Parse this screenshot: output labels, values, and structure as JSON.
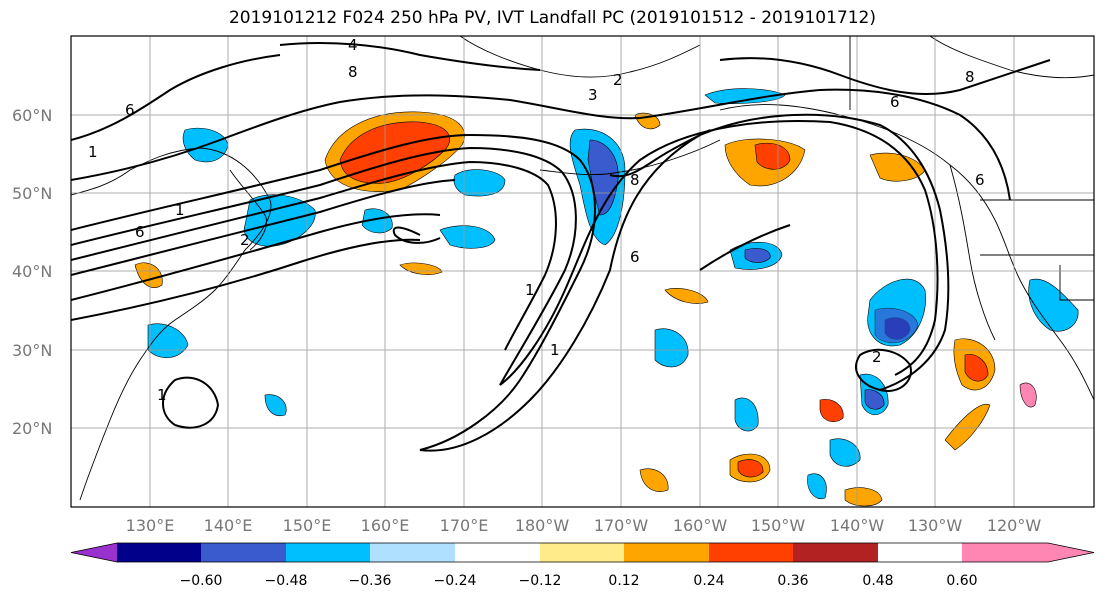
{
  "title": "2019101212 F024 250 hPa PV, IVT Landfall PC (2019101512 - 2019101712)",
  "map": {
    "lat_labels": [
      "60°N",
      "50°N",
      "40°N",
      "30°N",
      "20°N"
    ],
    "lon_labels": [
      "130°E",
      "140°E",
      "150°E",
      "160°E",
      "170°E",
      "180°W",
      "170°W",
      "160°W",
      "150°W",
      "140°W",
      "130°W",
      "120°W"
    ],
    "contour_labels": [
      "4",
      "8",
      "6",
      "1",
      "2",
      "3",
      "6",
      "1",
      "8",
      "6",
      "2",
      "1",
      "2",
      "1",
      "6",
      "8",
      "6",
      "1"
    ]
  },
  "colorbar": {
    "colors": [
      "#9932CC",
      "#00008B",
      "#3A5BCD",
      "#00BFFF",
      "#B0E0FF",
      "#FFFFFF",
      "#FFEB8A",
      "#FFA500",
      "#FF4000",
      "#B22222",
      "#FF85B3"
    ],
    "tick_labels": [
      "−0.60",
      "−0.48",
      "−0.36",
      "−0.24",
      "−0.12",
      "0.12",
      "0.24",
      "0.36",
      "0.48",
      "0.60"
    ]
  },
  "chart_data": {
    "type": "heatmap",
    "title": "2019101212 F024 250 hPa PV, IVT Landfall PC (2019101512 - 2019101712)",
    "x_axis": "longitude",
    "y_axis": "latitude",
    "x_range": [
      "120°E",
      "110°W"
    ],
    "y_range": [
      "10°N",
      "70°N"
    ],
    "x_ticks": [
      "130°E",
      "140°E",
      "150°E",
      "160°E",
      "170°E",
      "180°W",
      "170°W",
      "160°W",
      "150°W",
      "140°W",
      "130°W",
      "120°W"
    ],
    "y_ticks": [
      "20°N",
      "30°N",
      "40°N",
      "50°N",
      "60°N"
    ],
    "contours": "250 hPa PV (black lines)",
    "shading": "IVT Landfall PC regression",
    "color_levels": [
      -0.6,
      -0.48,
      -0.36,
      -0.24,
      -0.12,
      0.12,
      0.24,
      0.36,
      0.48,
      0.6
    ],
    "grid": true
  }
}
